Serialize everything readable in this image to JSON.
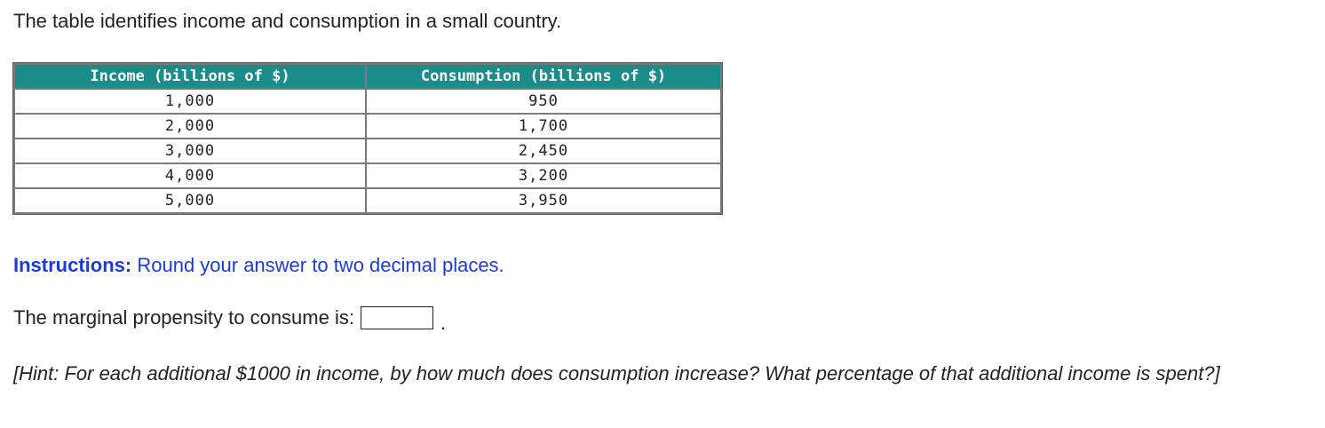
{
  "intro_text": "The table identifies income and consumption in a small country.",
  "table": {
    "headers": {
      "income": "Income (billions of $)",
      "consumption": "Consumption (billions of $)"
    },
    "rows": [
      {
        "income": "1,000",
        "consumption": "950"
      },
      {
        "income": "2,000",
        "consumption": "1,700"
      },
      {
        "income": "3,000",
        "consumption": "2,450"
      },
      {
        "income": "4,000",
        "consumption": "3,200"
      },
      {
        "income": "5,000",
        "consumption": "3,950"
      }
    ]
  },
  "instructions": {
    "lead": "Instructions:",
    "text": " Round your answer to two decimal places."
  },
  "question": {
    "label": "The marginal propensity to consume is:",
    "answer_value": "",
    "trailing": "."
  },
  "hint": "[Hint: For each additional $1000 in income, by how much does consumption increase? What percentage of that additional income is spent?]",
  "colors": {
    "header_bg": "#1b8c8a",
    "instructions_text": "#1a3bdc"
  }
}
